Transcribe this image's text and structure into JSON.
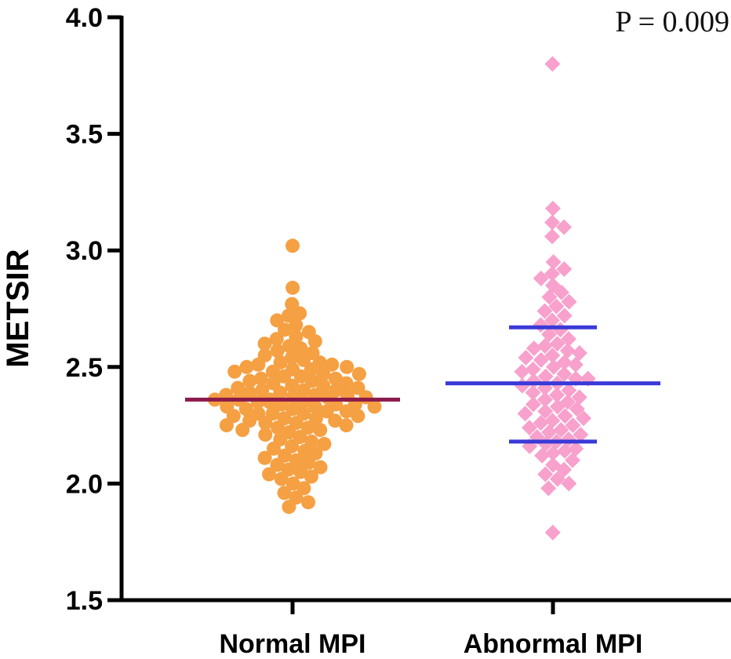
{
  "chart_data": {
    "type": "scatter",
    "title": "",
    "xlabel": "",
    "ylabel": "METSIR",
    "ylim": [
      1.5,
      4.0
    ],
    "yticks": [
      "1.5",
      "2.0",
      "2.5",
      "3.0",
      "3.5",
      "4.0"
    ],
    "categories": [
      "Normal MPI",
      "Abnormal MPI"
    ],
    "annotation": "P = 0.009",
    "series": [
      {
        "name": "Normal MPI",
        "marker": "circle",
        "color": "#f5a043",
        "median_color": "#8b1a4a",
        "median": 2.36,
        "values": [
          3.02,
          2.84,
          2.77,
          2.73,
          2.72,
          2.7,
          2.68,
          2.66,
          2.65,
          2.63,
          2.62,
          2.61,
          2.6,
          2.59,
          2.58,
          2.57,
          2.56,
          2.55,
          2.54,
          2.53,
          2.52,
          2.52,
          2.51,
          2.51,
          2.5,
          2.5,
          2.49,
          2.49,
          2.48,
          2.48,
          2.47,
          2.47,
          2.46,
          2.46,
          2.45,
          2.45,
          2.44,
          2.44,
          2.43,
          2.43,
          2.42,
          2.42,
          2.41,
          2.41,
          2.4,
          2.4,
          2.4,
          2.39,
          2.39,
          2.38,
          2.38,
          2.38,
          2.37,
          2.37,
          2.37,
          2.36,
          2.36,
          2.36,
          2.35,
          2.35,
          2.35,
          2.34,
          2.34,
          2.34,
          2.33,
          2.33,
          2.33,
          2.32,
          2.32,
          2.31,
          2.31,
          2.3,
          2.3,
          2.3,
          2.29,
          2.29,
          2.28,
          2.28,
          2.27,
          2.27,
          2.26,
          2.26,
          2.25,
          2.25,
          2.24,
          2.24,
          2.23,
          2.23,
          2.22,
          2.21,
          2.2,
          2.19,
          2.18,
          2.17,
          2.16,
          2.15,
          2.14,
          2.13,
          2.12,
          2.11,
          2.1,
          2.09,
          2.08,
          2.07,
          2.06,
          2.05,
          2.04,
          2.03,
          2.02,
          2.0,
          1.98,
          1.96,
          1.94,
          1.92,
          1.9
        ]
      },
      {
        "name": "Abnormal MPI",
        "marker": "diamond",
        "color": "#f7a1cc",
        "median_color": "#3a3ad8",
        "median": 2.43,
        "q1": 2.18,
        "q3": 2.67,
        "values": [
          3.8,
          3.18,
          3.12,
          3.1,
          3.06,
          2.95,
          2.92,
          2.9,
          2.88,
          2.85,
          2.82,
          2.8,
          2.78,
          2.76,
          2.74,
          2.72,
          2.7,
          2.68,
          2.66,
          2.64,
          2.62,
          2.6,
          2.59,
          2.58,
          2.57,
          2.56,
          2.55,
          2.54,
          2.53,
          2.52,
          2.51,
          2.5,
          2.49,
          2.48,
          2.47,
          2.46,
          2.45,
          2.45,
          2.44,
          2.43,
          2.42,
          2.41,
          2.4,
          2.39,
          2.38,
          2.37,
          2.36,
          2.35,
          2.34,
          2.33,
          2.32,
          2.31,
          2.3,
          2.29,
          2.28,
          2.27,
          2.26,
          2.25,
          2.24,
          2.23,
          2.22,
          2.21,
          2.2,
          2.19,
          2.18,
          2.17,
          2.16,
          2.15,
          2.14,
          2.13,
          2.12,
          2.1,
          2.08,
          2.06,
          2.04,
          2.02,
          2.0,
          1.98,
          1.79
        ]
      }
    ]
  }
}
